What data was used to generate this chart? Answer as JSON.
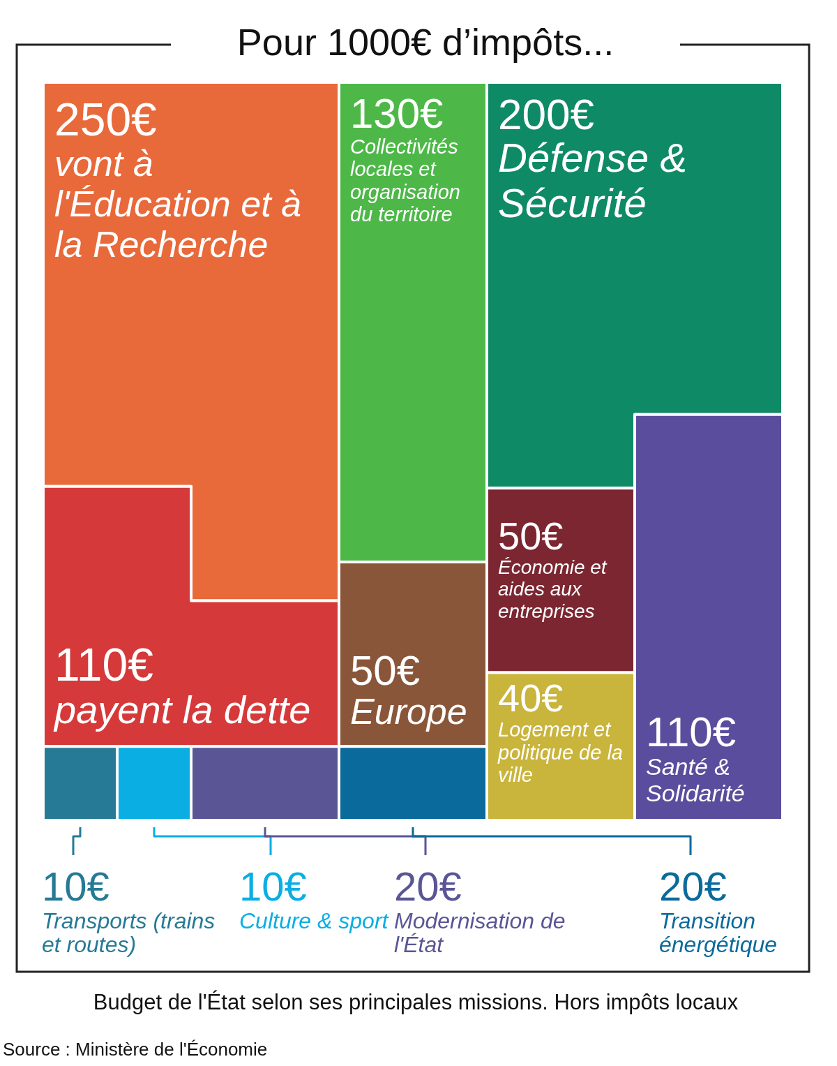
{
  "chart_data": {
    "type": "other",
    "title": "Pour 1000€ d’impôts...",
    "categories": [
      "vont à l'Éducation et à la Recherche",
      "payent la dette",
      "Collectivités locales et organisation du territoire",
      "Europe",
      "Défense & Sécurité",
      "Économie et aides aux entreprises",
      "Logement et politique de la ville",
      "Santé & Solidarité",
      "Transports (trains et routes)",
      "Culture & sport",
      "Modernisation de l'État",
      "Transition énergétique"
    ],
    "values": [
      250,
      110,
      130,
      50,
      200,
      50,
      40,
      110,
      10,
      10,
      20,
      20
    ],
    "value_labels": [
      "250€",
      "110€",
      "130€",
      "50€",
      "200€",
      "50€",
      "40€",
      "110€",
      "10€",
      "10€",
      "20€",
      "20€"
    ],
    "colors": [
      "#e8693a",
      "#d5393a",
      "#4db848",
      "#8a563a",
      "#0f8a66",
      "#7b2631",
      "#c9b43c",
      "#5a4d9d",
      "#267a95",
      "#0aaee2",
      "#5a5595",
      "#0a6a9c"
    ],
    "annotations": [
      "Budget de l'État selon ses principales missions. Hors impôts locaux",
      "Source : Ministère de l'Économie"
    ]
  }
}
